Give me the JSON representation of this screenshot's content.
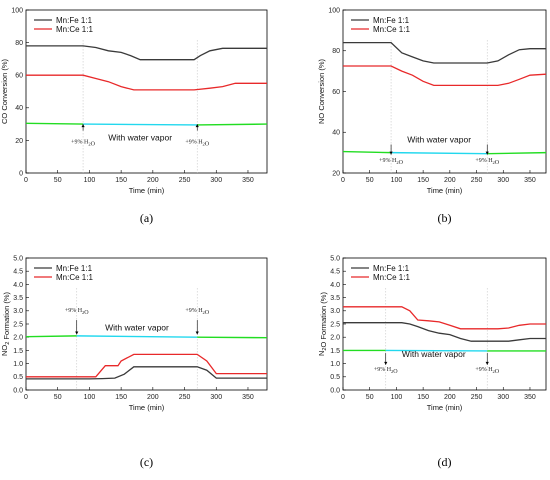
{
  "colors": {
    "mn_fe": "#3a3a3a",
    "mn_ce": "#e8292a",
    "water_green": "#22dd22",
    "water_cyan": "#22d8ee",
    "guide": "#c8c8c8"
  },
  "chart_data": [
    {
      "type": "line",
      "panel_label": "(a)",
      "xlabel": "Time (min)",
      "ylabel": "CO Conversion (%)",
      "xlim": [
        0,
        380
      ],
      "ylim": [
        0,
        100
      ],
      "xticks": [
        0,
        50,
        100,
        150,
        200,
        250,
        300,
        350
      ],
      "yticks": [
        0,
        20,
        40,
        60,
        80,
        100
      ],
      "legend_position": "top-left",
      "series": [
        {
          "name": "Mn:Fe 1:1",
          "color": "mn_fe",
          "x": [
            0,
            90,
            110,
            130,
            150,
            165,
            180,
            200,
            230,
            265,
            275,
            290,
            310,
            330,
            350,
            380
          ],
          "y": [
            78,
            78,
            77,
            75,
            74,
            72,
            69.5,
            69.5,
            69.5,
            69.5,
            72,
            75,
            76.5,
            76.5,
            76.5,
            76.5
          ]
        },
        {
          "name": "Mn:Ce 1:1",
          "color": "mn_ce",
          "x": [
            0,
            90,
            110,
            130,
            150,
            170,
            200,
            230,
            265,
            290,
            310,
            330,
            350,
            380
          ],
          "y": [
            60,
            60,
            58,
            56,
            53,
            51,
            51,
            51,
            51,
            52,
            53,
            55,
            55,
            55
          ]
        }
      ],
      "water_line": {
        "x": [
          0,
          90,
          270,
          380
        ],
        "y": [
          30.5,
          30,
          29.5,
          30
        ],
        "segments": [
          {
            "from": 0,
            "to": 90,
            "color": "water_green"
          },
          {
            "from": 90,
            "to": 270,
            "color": "water_cyan"
          },
          {
            "from": 270,
            "to": 380,
            "color": "water_green"
          }
        ]
      },
      "guides": [
        90,
        270
      ],
      "annotations": [
        {
          "text": "+9% H₂O",
          "x": 90,
          "y": 18
        },
        {
          "text": "+9% H₂O",
          "x": 270,
          "y": 18
        },
        {
          "text": "With water vapor",
          "x": 180,
          "y": 20,
          "big": true
        }
      ],
      "arrow_dir": "up",
      "arrow_from": 26,
      "arrow_to": 30
    },
    {
      "type": "line",
      "panel_label": "(b)",
      "xlabel": "Time (min)",
      "ylabel": "NO Conversion (%)",
      "xlim": [
        0,
        380
      ],
      "ylim": [
        20,
        100
      ],
      "xticks": [
        0,
        50,
        100,
        150,
        200,
        250,
        300,
        350
      ],
      "yticks": [
        20,
        40,
        60,
        80,
        100
      ],
      "legend_position": "top-left",
      "series": [
        {
          "name": "Mn:Fe 1:1",
          "color": "mn_fe",
          "x": [
            0,
            90,
            110,
            130,
            150,
            170,
            200,
            230,
            270,
            290,
            310,
            330,
            350,
            380
          ],
          "y": [
            84,
            84,
            79,
            77,
            75,
            74,
            74,
            74,
            74,
            75,
            78,
            80.5,
            81,
            81
          ]
        },
        {
          "name": "Mn:Ce 1:1",
          "color": "mn_ce",
          "x": [
            0,
            90,
            110,
            130,
            150,
            170,
            200,
            230,
            270,
            290,
            310,
            330,
            350,
            380
          ],
          "y": [
            72.5,
            72.5,
            70,
            68,
            65,
            63,
            63,
            63,
            63,
            63,
            64,
            66,
            68,
            68.5
          ]
        }
      ],
      "water_line": {
        "x": [
          0,
          90,
          270,
          380
        ],
        "y": [
          30.5,
          30,
          29.5,
          30
        ],
        "segments": [
          {
            "from": 0,
            "to": 90,
            "color": "water_green"
          },
          {
            "from": 90,
            "to": 270,
            "color": "water_cyan"
          },
          {
            "from": 270,
            "to": 380,
            "color": "water_green"
          }
        ]
      },
      "guides": [
        90,
        270
      ],
      "annotations": [
        {
          "text": "+9% H₂O",
          "x": 90,
          "y": 25.5
        },
        {
          "text": "+9% H₂O",
          "x": 270,
          "y": 25.5
        },
        {
          "text": "With water vapor",
          "x": 180,
          "y": 35,
          "big": true
        }
      ],
      "arrow_dir": "down",
      "arrow_from": 34,
      "arrow_to": 29
    },
    {
      "type": "line",
      "panel_label": "(c)",
      "xlabel": "Time (min)",
      "ylabel": "NO₂ Formation (%)",
      "xlim": [
        0,
        380
      ],
      "ylim": [
        0,
        5
      ],
      "xticks": [
        0,
        50,
        100,
        150,
        200,
        250,
        300,
        350
      ],
      "yticks": [
        0,
        0.5,
        1.0,
        1.5,
        2.0,
        2.5,
        3.0,
        3.5,
        4.0,
        4.5,
        5.0
      ],
      "legend_position": "top-left",
      "series": [
        {
          "name": "Mn:Fe 1:1",
          "color": "mn_fe",
          "x": [
            0,
            100,
            120,
            140,
            155,
            170,
            200,
            230,
            270,
            285,
            300,
            320,
            350,
            380
          ],
          "y": [
            0.42,
            0.42,
            0.43,
            0.45,
            0.6,
            0.88,
            0.88,
            0.88,
            0.88,
            0.75,
            0.45,
            0.45,
            0.45,
            0.45
          ]
        },
        {
          "name": "Mn:Ce 1:1",
          "color": "mn_ce",
          "x": [
            0,
            110,
            125,
            145,
            150,
            170,
            200,
            230,
            270,
            285,
            300,
            320,
            350,
            380
          ],
          "y": [
            0.5,
            0.5,
            0.92,
            0.92,
            1.1,
            1.35,
            1.35,
            1.35,
            1.35,
            1.1,
            0.62,
            0.62,
            0.62,
            0.62
          ]
        }
      ],
      "water_line": {
        "x": [
          0,
          80,
          270,
          380
        ],
        "y": [
          2.02,
          2.05,
          2.0,
          1.98
        ],
        "segments": [
          {
            "from": 0,
            "to": 80,
            "color": "water_green"
          },
          {
            "from": 80,
            "to": 270,
            "color": "water_cyan"
          },
          {
            "from": 270,
            "to": 380,
            "color": "water_green"
          }
        ]
      },
      "guides": [
        80,
        270
      ],
      "annotations": [
        {
          "text": "+9% H₂O",
          "x": 80,
          "y": 2.95
        },
        {
          "text": "+9% H₂O",
          "x": 270,
          "y": 2.95
        },
        {
          "text": "With water vapor",
          "x": 175,
          "y": 2.25,
          "big": true
        }
      ],
      "arrow_dir": "down",
      "arrow_from": 2.65,
      "arrow_to": 2.1
    },
    {
      "type": "line",
      "panel_label": "(d)",
      "xlabel": "Time (min)",
      "ylabel": "N₂O Formation (%)",
      "xlim": [
        0,
        380
      ],
      "ylim": [
        0,
        5
      ],
      "xticks": [
        0,
        50,
        100,
        150,
        200,
        250,
        300,
        350
      ],
      "yticks": [
        0,
        0.5,
        1.0,
        1.5,
        2.0,
        2.5,
        3.0,
        3.5,
        4.0,
        4.5,
        5.0
      ],
      "legend_position": "top-left",
      "series": [
        {
          "name": "Mn:Fe 1:1",
          "color": "mn_fe",
          "x": [
            0,
            110,
            125,
            140,
            160,
            180,
            200,
            220,
            240,
            270,
            290,
            310,
            330,
            350,
            380
          ],
          "y": [
            2.55,
            2.55,
            2.5,
            2.4,
            2.25,
            2.15,
            2.1,
            1.95,
            1.85,
            1.85,
            1.85,
            1.85,
            1.9,
            1.95,
            1.95
          ]
        },
        {
          "name": "Mn:Ce 1:1",
          "color": "mn_ce",
          "x": [
            0,
            110,
            125,
            140,
            160,
            180,
            200,
            220,
            240,
            270,
            290,
            310,
            330,
            350,
            380
          ],
          "y": [
            3.15,
            3.15,
            3.0,
            2.65,
            2.62,
            2.58,
            2.45,
            2.32,
            2.32,
            2.32,
            2.32,
            2.35,
            2.45,
            2.5,
            2.5
          ]
        }
      ],
      "water_line": {
        "x": [
          0,
          80,
          270,
          380
        ],
        "y": [
          1.5,
          1.5,
          1.48,
          1.48
        ],
        "segments": [
          {
            "from": 0,
            "to": 80,
            "color": "water_green"
          },
          {
            "from": 80,
            "to": 270,
            "color": "water_cyan"
          },
          {
            "from": 270,
            "to": 380,
            "color": "water_green"
          }
        ]
      },
      "guides": [
        80,
        270
      ],
      "annotations": [
        {
          "text": "+9% H₂O",
          "x": 80,
          "y": 0.72
        },
        {
          "text": "+9% H₂O",
          "x": 270,
          "y": 0.72
        },
        {
          "text": "With water vapor",
          "x": 170,
          "y": 1.25,
          "big": true
        }
      ],
      "arrow_dir": "down",
      "arrow_from": 1.4,
      "arrow_to": 0.95
    }
  ]
}
